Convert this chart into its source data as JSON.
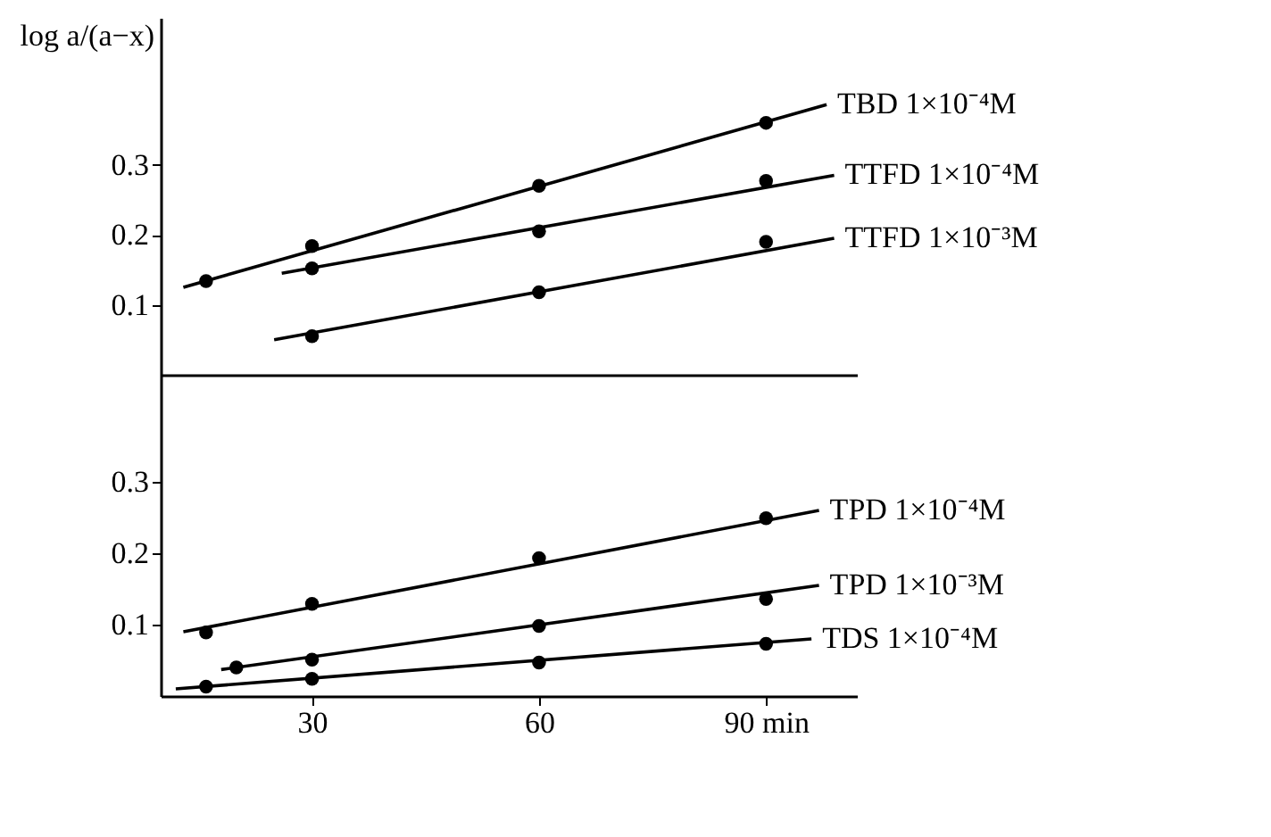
{
  "chart_data": [
    {
      "type": "scatter",
      "ylabel": "log a/(a−x)",
      "xlim": [
        10,
        102
      ],
      "ylim": [
        0,
        0.51
      ],
      "yticks": [
        0.1,
        0.2,
        0.3
      ],
      "tick_labels": "y",
      "grid": false,
      "legend": false,
      "marker": "circle",
      "series": [
        {
          "color": "#000000",
          "x": [
            16,
            30,
            60,
            90
          ],
          "values": [
            0.134,
            0.184,
            0.27,
            0.36
          ]
        },
        {
          "color": "#000000",
          "x": [
            30,
            60,
            90
          ],
          "values": [
            0.152,
            0.205,
            0.277
          ]
        },
        {
          "color": "#000000",
          "x": [
            30,
            60,
            90
          ],
          "values": [
            0.055,
            0.118,
            0.19
          ]
        },
        {
          "type": "line",
          "name": "TBD 1×10⁻⁴M",
          "color": "#000000",
          "marker": "none",
          "line_style": "solid",
          "x": [
            13,
            98
          ],
          "values": [
            0.125,
            0.386
          ]
        },
        {
          "type": "line",
          "name": "TTFD 1×10⁻⁴M",
          "color": "#000000",
          "marker": "none",
          "line_style": "solid",
          "x": [
            26,
            99
          ],
          "values": [
            0.145,
            0.285
          ]
        },
        {
          "type": "line",
          "name": "TTFD 1×10⁻³M",
          "color": "#000000",
          "marker": "none",
          "line_style": "solid",
          "x": [
            25,
            99
          ],
          "values": [
            0.05,
            0.195
          ]
        }
      ]
    },
    {
      "type": "scatter",
      "xlim": [
        10,
        102
      ],
      "ylim": [
        0,
        0.45
      ],
      "yticks": [
        0.1,
        0.2,
        0.3
      ],
      "xticks": [
        30,
        60,
        {
          "value": 90,
          "label": "90 min"
        }
      ],
      "grid": false,
      "legend": false,
      "marker": "circle",
      "series": [
        {
          "color": "#000000",
          "x": [
            16,
            30,
            60,
            90
          ],
          "values": [
            0.089,
            0.129,
            0.193,
            0.249
          ]
        },
        {
          "color": "#000000",
          "x": [
            20,
            30,
            60,
            90
          ],
          "values": [
            0.04,
            0.051,
            0.098,
            0.136
          ]
        },
        {
          "color": "#000000",
          "x": [
            16,
            30,
            60,
            90
          ],
          "values": [
            0.013,
            0.024,
            0.047,
            0.073
          ]
        },
        {
          "type": "line",
          "name": "TPD 1×10⁻⁴M",
          "color": "#000000",
          "marker": "none",
          "line_style": "solid",
          "x": [
            13,
            97
          ],
          "values": [
            0.09,
            0.26
          ]
        },
        {
          "type": "line",
          "name": "TPD 1×10⁻³M",
          "color": "#000000",
          "marker": "none",
          "line_style": "solid",
          "x": [
            18,
            97
          ],
          "values": [
            0.037,
            0.155
          ]
        },
        {
          "type": "line",
          "name": "TDS 1×10⁻⁴M",
          "color": "#000000",
          "marker": "none",
          "line_style": "solid",
          "x": [
            12,
            96
          ],
          "values": [
            0.01,
            0.08
          ]
        }
      ]
    }
  ]
}
